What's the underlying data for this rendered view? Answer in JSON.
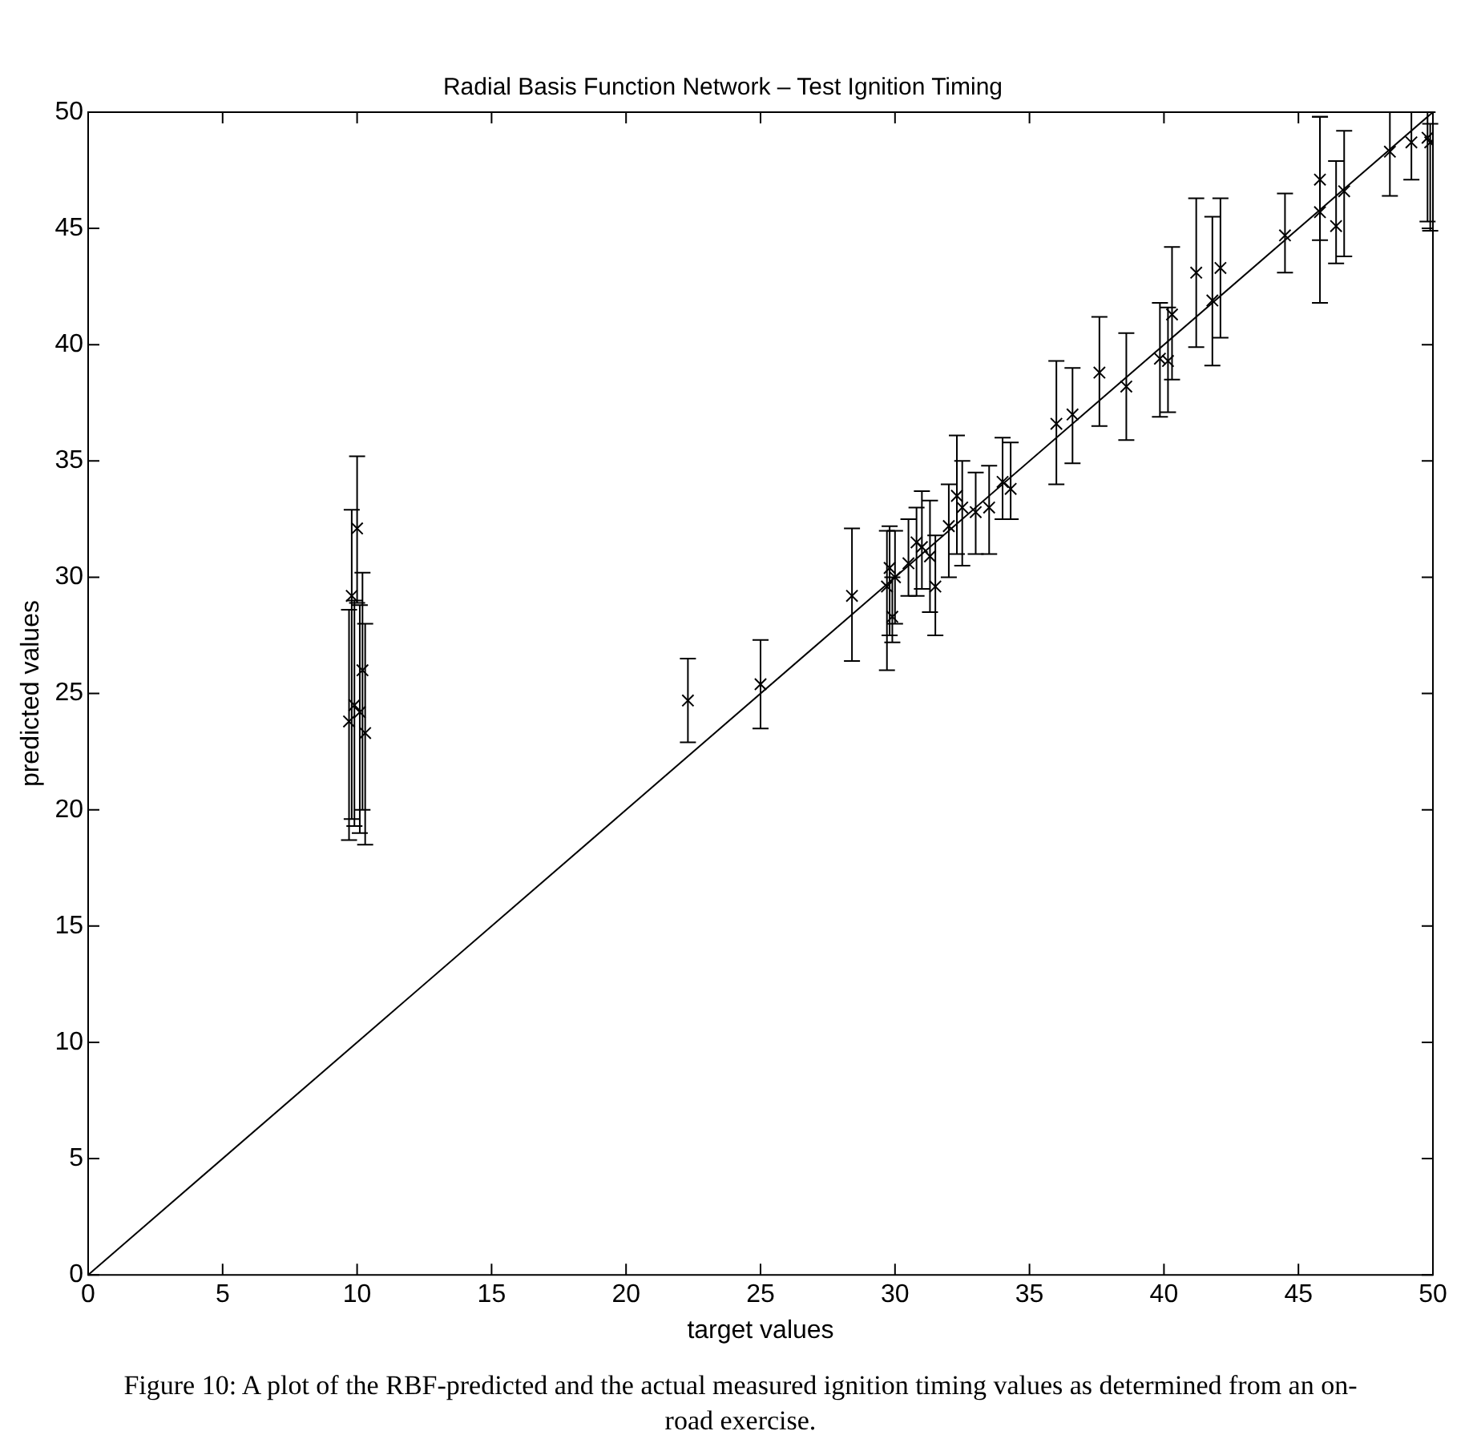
{
  "chart_data": {
    "type": "scatter",
    "title": "Radial Basis Function Network – Test Ignition Timing",
    "xlabel": "target values",
    "ylabel": "predicted values",
    "xlim": [
      0,
      50
    ],
    "xticks": [
      0,
      5,
      10,
      15,
      20,
      25,
      30,
      35,
      40,
      45,
      50
    ],
    "ylim": [
      0,
      50
    ],
    "yticks": [
      0,
      5,
      10,
      15,
      20,
      25,
      30,
      35,
      40,
      45,
      50
    ],
    "grid": false,
    "marker": "cross",
    "series": [
      {
        "color": "#000000",
        "x": [
          10,
          9.8,
          10.2,
          9.9,
          10.1,
          9.7,
          10.3,
          22.3,
          25.0,
          28.4,
          29.8,
          29.7,
          29.9,
          30.0,
          30.5,
          30.8,
          31.0,
          31.3,
          31.5,
          32.0,
          32.3,
          32.5,
          33.0,
          33.5,
          34.0,
          34.3,
          36.0,
          36.6,
          37.6,
          38.6,
          39.85,
          40.15,
          40.3,
          41.2,
          41.8,
          42.1,
          44.5,
          45.8,
          45.8,
          46.4,
          46.7,
          48.4,
          49.2,
          49.8,
          49.9
        ],
        "values": [
          32.1,
          29.2,
          26.0,
          24.5,
          24.2,
          23.8,
          23.3,
          24.7,
          25.4,
          29.2,
          30.4,
          29.6,
          28.3,
          30.0,
          30.6,
          31.5,
          31.3,
          30.9,
          29.6,
          32.2,
          33.5,
          33.0,
          32.8,
          33.0,
          34.1,
          33.8,
          36.6,
          37.0,
          38.8,
          38.2,
          39.4,
          39.3,
          41.3,
          43.1,
          41.9,
          43.3,
          44.7,
          45.7,
          47.1,
          45.1,
          46.6,
          48.3,
          48.7,
          48.9,
          48.7
        ],
        "errors": [
          [
            28.9,
            35.2
          ],
          [
            19.6,
            32.9
          ],
          [
            20.0,
            30.2
          ],
          [
            19.3,
            29.0
          ],
          [
            19.0,
            28.8
          ],
          [
            18.7,
            28.6
          ],
          [
            18.5,
            28.0
          ],
          [
            22.9,
            26.5
          ],
          [
            23.5,
            27.3
          ],
          [
            26.4,
            32.1
          ],
          [
            27.5,
            32.2
          ],
          [
            26.0,
            32.0
          ],
          [
            27.2,
            30.0
          ],
          [
            28.0,
            32.0
          ],
          [
            29.2,
            32.5
          ],
          [
            29.2,
            33.0
          ],
          [
            29.5,
            33.7
          ],
          [
            28.5,
            33.3
          ],
          [
            27.5,
            31.8
          ],
          [
            30.0,
            34.0
          ],
          [
            31.0,
            36.1
          ],
          [
            30.5,
            35.0
          ],
          [
            31.0,
            34.5
          ],
          [
            31.0,
            34.8
          ],
          [
            32.5,
            36.0
          ],
          [
            32.5,
            35.8
          ],
          [
            34.0,
            39.3
          ],
          [
            34.9,
            39.0
          ],
          [
            36.5,
            41.2
          ],
          [
            35.9,
            40.5
          ],
          [
            36.9,
            41.8
          ],
          [
            37.1,
            41.6
          ],
          [
            38.5,
            44.2
          ],
          [
            39.9,
            46.3
          ],
          [
            39.1,
            45.5
          ],
          [
            40.3,
            46.3
          ],
          [
            43.1,
            46.5
          ],
          [
            41.8,
            49.8
          ],
          [
            44.5,
            49.8
          ],
          [
            43.5,
            47.9
          ],
          [
            43.8,
            49.2
          ],
          [
            46.4,
            50
          ],
          [
            47.1,
            50
          ],
          [
            45.3,
            50
          ],
          [
            44.9,
            49.5
          ]
        ]
      },
      {
        "type": "line",
        "color": "#000000",
        "x": [
          0,
          50
        ],
        "values": [
          0,
          50
        ],
        "marker": "none"
      }
    ],
    "annotations": [
      "Figure 10: A plot of the RBF-predicted and the actual measured ignition timing values as determined from an on-road exercise."
    ]
  }
}
